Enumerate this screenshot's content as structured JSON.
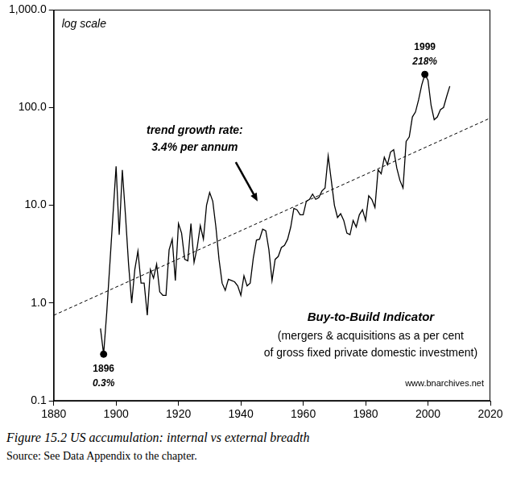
{
  "chart_data": {
    "type": "line",
    "log": "y",
    "grid": false,
    "color": "#000000",
    "x": [
      1895,
      1896,
      1897,
      1898,
      1899,
      1900,
      1901,
      1902,
      1903,
      1904,
      1905,
      1906,
      1907,
      1908,
      1909,
      1910,
      1911,
      1912,
      1913,
      1914,
      1915,
      1916,
      1917,
      1918,
      1919,
      1920,
      1921,
      1922,
      1923,
      1924,
      1925,
      1926,
      1927,
      1928,
      1929,
      1930,
      1931,
      1932,
      1933,
      1934,
      1935,
      1936,
      1937,
      1938,
      1939,
      1940,
      1941,
      1942,
      1943,
      1944,
      1945,
      1946,
      1947,
      1948,
      1949,
      1950,
      1951,
      1952,
      1953,
      1954,
      1955,
      1956,
      1957,
      1958,
      1959,
      1960,
      1961,
      1962,
      1963,
      1964,
      1965,
      1966,
      1967,
      1968,
      1969,
      1970,
      1971,
      1972,
      1973,
      1974,
      1975,
      1976,
      1977,
      1978,
      1979,
      1980,
      1981,
      1982,
      1983,
      1984,
      1985,
      1986,
      1987,
      1988,
      1989,
      1990,
      1991,
      1992,
      1993,
      1994,
      1995,
      1996,
      1997,
      1998,
      1999,
      2000,
      2001,
      2002,
      2003,
      2004,
      2005,
      2006,
      2007
    ],
    "values": [
      0.55,
      0.3,
      0.8,
      2.5,
      8,
      25,
      5,
      23,
      8,
      2.5,
      1.0,
      2.2,
      3.4,
      1.6,
      1.6,
      0.75,
      2.2,
      1.8,
      2.5,
      1.3,
      1.2,
      1.2,
      3.5,
      4.5,
      1.7,
      6.5,
      5.2,
      2.8,
      2.7,
      6.5,
      2.6,
      3.7,
      6.2,
      4.5,
      10,
      13.5,
      11,
      6,
      2.8,
      1.6,
      1.35,
      1.75,
      1.7,
      1.65,
      1.5,
      1.2,
      1.9,
      1.5,
      1.6,
      2.9,
      4.4,
      4.5,
      5.7,
      5.5,
      3.5,
      1.7,
      2.8,
      3.0,
      3.7,
      3.9,
      4.5,
      6.0,
      9.3,
      9.0,
      8.0,
      8.0,
      11,
      11.5,
      13,
      11.5,
      12,
      14,
      15,
      32,
      18,
      10,
      7.5,
      8.2,
      7.0,
      5.2,
      5.0,
      7.0,
      6.0,
      8.0,
      9.0,
      7.0,
      12.5,
      11.5,
      9.5,
      23,
      21,
      31,
      26,
      35,
      37,
      24,
      18,
      15,
      45,
      50,
      80,
      90,
      120,
      170,
      218,
      190,
      105,
      75,
      80,
      95,
      100,
      130,
      165
    ],
    "xlim": [
      1880,
      2020
    ],
    "xticks": [
      1880,
      1900,
      1920,
      1940,
      1960,
      1980,
      2000,
      2020
    ],
    "ylim": [
      0.1,
      1000
    ],
    "yticks": [
      0.1,
      {
        "value": 1,
        "label": "1.0"
      },
      {
        "value": 10,
        "label": "10.0"
      },
      {
        "value": 100,
        "label": "100.0"
      },
      {
        "value": 1000,
        "label": "1,000.0"
      }
    ],
    "trend": {
      "x": [
        1880,
        2020
      ],
      "values": [
        0.75,
        78
      ],
      "line_style": "dashed",
      "color": "#000000"
    },
    "highlights": [
      {
        "x": 1896,
        "value": 0.3,
        "year_label": "1896",
        "value_label": "0.3%"
      },
      {
        "x": 1999,
        "value": 218,
        "year_label": "1999",
        "value_label": "218%"
      }
    ],
    "annotations": {
      "scale_note": "log scale",
      "trend_label": [
        "trend growth rate:",
        "3.4% per annum"
      ],
      "indicator_title": "Buy-to-Build Indicator",
      "indicator_subtitle": [
        "(mergers & acquisitions as a per cent",
        "of gross fixed private domestic investment)"
      ],
      "source_url": "www.bnarchives.net"
    },
    "caption": {
      "figure": "Figure 15.2",
      "title": "US accumulation: internal vs external breadth",
      "source": "Source: See Data Appendix to the chapter."
    }
  }
}
